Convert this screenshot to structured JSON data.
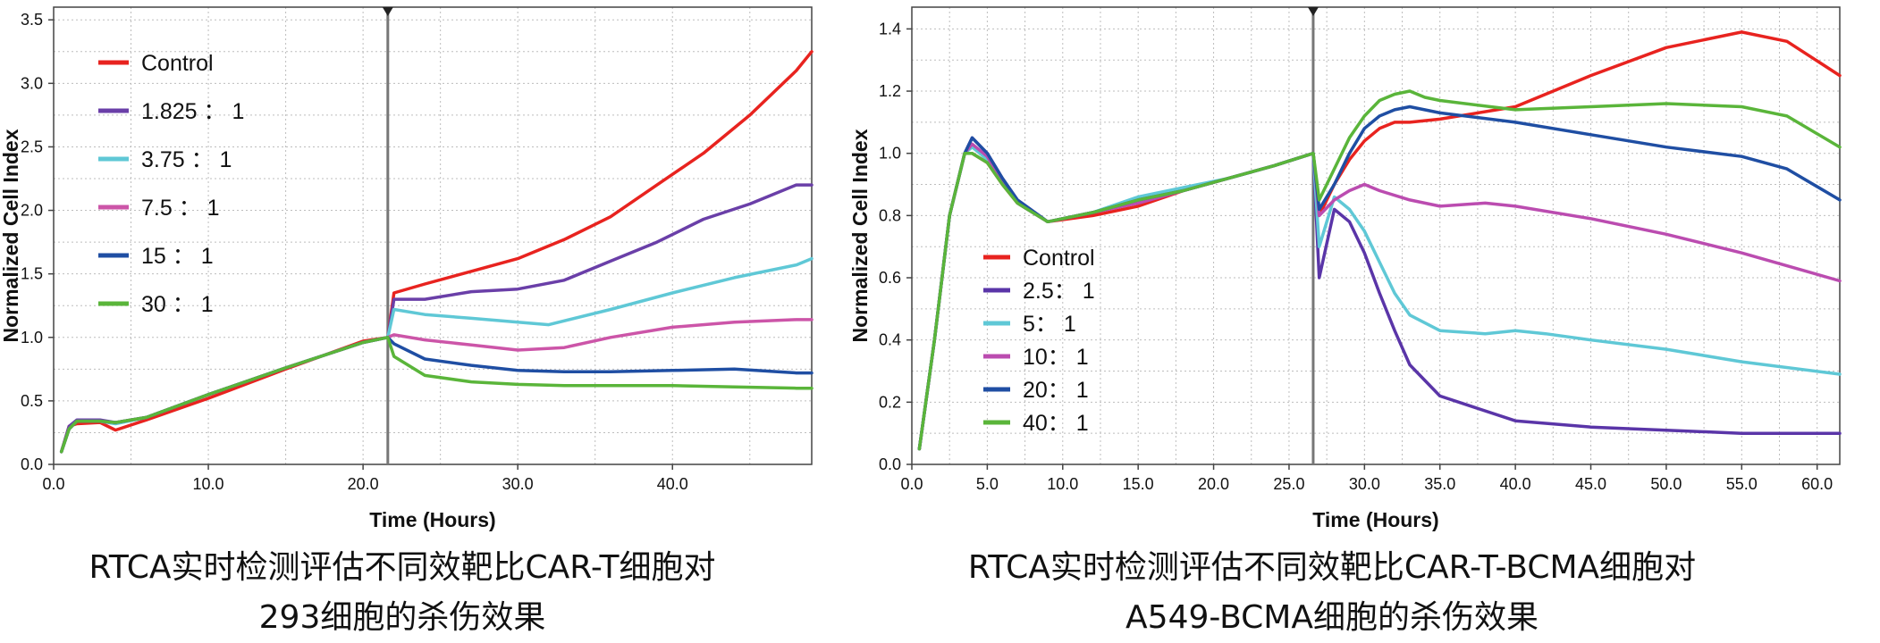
{
  "chart_data": [
    {
      "type": "line",
      "title": "",
      "xlabel": "Time (Hours)",
      "ylabel": "Normalized Cell Index",
      "xlim": [
        0,
        49
      ],
      "ylim": [
        0,
        3.6
      ],
      "xticks": [
        0,
        10,
        20,
        30,
        40
      ],
      "xtick_labels": [
        "0.0",
        "10.0",
        "20.0",
        "30.0",
        "40.0"
      ],
      "yticks": [
        0,
        0.5,
        1.0,
        1.5,
        2.0,
        2.5,
        3.0,
        3.5
      ],
      "ytick_labels": [
        "0.0",
        "0.5",
        "1.0",
        "1.5",
        "2.0",
        "2.5",
        "3.0",
        "3.5"
      ],
      "grid": true,
      "legend_position": "top-left",
      "marker_x": 21.6,
      "caption": [
        "RTCA实时检测评估不同效靶比CAR-T细胞对",
        "293细胞的杀伤效果"
      ],
      "series": [
        {
          "name": "Control",
          "color": "#e8231f",
          "x": [
            0.5,
            1,
            1.5,
            3,
            4,
            6,
            10,
            15,
            20,
            21.6,
            22,
            24,
            27,
            30,
            33,
            36,
            39,
            42,
            45,
            48,
            49
          ],
          "values": [
            0.1,
            0.3,
            0.32,
            0.33,
            0.27,
            0.35,
            0.52,
            0.75,
            0.97,
            1.0,
            1.35,
            1.42,
            1.52,
            1.62,
            1.77,
            1.95,
            2.2,
            2.45,
            2.75,
            3.1,
            3.25
          ]
        },
        {
          "name": "1.825 ： 1",
          "color": "#6a3fa8",
          "x": [
            0.5,
            1,
            1.5,
            3,
            4,
            6,
            10,
            15,
            20,
            21.6,
            22,
            24,
            27,
            30,
            33,
            36,
            39,
            42,
            45,
            48,
            49
          ],
          "values": [
            0.1,
            0.3,
            0.35,
            0.35,
            0.33,
            0.37,
            0.55,
            0.76,
            0.96,
            1.0,
            1.3,
            1.3,
            1.36,
            1.38,
            1.45,
            1.6,
            1.75,
            1.93,
            2.05,
            2.2,
            2.2
          ]
        },
        {
          "name": "3.75 ： 1",
          "color": "#5fc8d6",
          "x": [
            0.5,
            1,
            1.5,
            3,
            4,
            6,
            10,
            15,
            20,
            21.6,
            22,
            24,
            27,
            30,
            32,
            36,
            40,
            44,
            48,
            49
          ],
          "values": [
            0.1,
            0.28,
            0.34,
            0.34,
            0.32,
            0.37,
            0.55,
            0.76,
            0.96,
            1.0,
            1.22,
            1.18,
            1.15,
            1.12,
            1.1,
            1.22,
            1.35,
            1.47,
            1.57,
            1.62
          ]
        },
        {
          "name": "7.5 ： 1",
          "color": "#cc55a8",
          "x": [
            0.5,
            1,
            1.5,
            3,
            4,
            6,
            10,
            15,
            20,
            21.6,
            22,
            24,
            27,
            30,
            33,
            36,
            40,
            44,
            48,
            49
          ],
          "values": [
            0.1,
            0.28,
            0.34,
            0.34,
            0.33,
            0.37,
            0.55,
            0.76,
            0.96,
            1.0,
            1.02,
            0.98,
            0.94,
            0.9,
            0.92,
            1.0,
            1.08,
            1.12,
            1.14,
            1.14
          ]
        },
        {
          "name": "15 ： 1",
          "color": "#1f4ea3",
          "x": [
            0.5,
            1,
            1.5,
            3,
            4,
            6,
            10,
            15,
            20,
            21.6,
            22,
            24,
            27,
            30,
            33,
            36,
            40,
            44,
            48,
            49
          ],
          "values": [
            0.1,
            0.28,
            0.34,
            0.34,
            0.33,
            0.37,
            0.55,
            0.76,
            0.96,
            1.0,
            0.95,
            0.83,
            0.78,
            0.74,
            0.73,
            0.73,
            0.74,
            0.75,
            0.72,
            0.72
          ]
        },
        {
          "name": "30 ： 1",
          "color": "#5ab53a",
          "x": [
            0.5,
            1,
            1.5,
            3,
            4,
            6,
            10,
            15,
            20,
            21.6,
            22,
            24,
            27,
            30,
            33,
            36,
            40,
            44,
            48,
            49
          ],
          "values": [
            0.1,
            0.28,
            0.34,
            0.34,
            0.33,
            0.37,
            0.55,
            0.76,
            0.96,
            1.0,
            0.85,
            0.7,
            0.65,
            0.63,
            0.62,
            0.62,
            0.62,
            0.61,
            0.6,
            0.6
          ]
        }
      ]
    },
    {
      "type": "line",
      "title": "",
      "xlabel": "Time (Hours)",
      "ylabel": "Normalized Cell Index",
      "xlim": [
        0,
        61.5
      ],
      "ylim": [
        0,
        1.47
      ],
      "xticks": [
        0,
        5,
        10,
        15,
        20,
        25,
        30,
        35,
        40,
        45,
        50,
        55,
        60
      ],
      "xtick_labels": [
        "0.0",
        "5.0",
        "10.0",
        "15.0",
        "20.0",
        "25.0",
        "30.0",
        "35.0",
        "40.0",
        "45.0",
        "50.0",
        "55.0",
        "60.0"
      ],
      "yticks": [
        0,
        0.2,
        0.4,
        0.6,
        0.8,
        1.0,
        1.2,
        1.4
      ],
      "ytick_labels": [
        "0.0",
        "0.2",
        "0.4",
        "0.6",
        "0.8",
        "1.0",
        "1.2",
        "1.4"
      ],
      "grid": true,
      "legend_position": "center-left",
      "marker_x": 26.6,
      "caption": [
        "RTCA实时检测评估不同效靶比CAR-T-BCMA细胞对",
        "A549-BCMA细胞的杀伤效果"
      ],
      "series": [
        {
          "name": "Control",
          "color": "#e8231f",
          "x": [
            0.5,
            1.5,
            2.5,
            3.5,
            4,
            5,
            6,
            7,
            9,
            12,
            15,
            18,
            21,
            24,
            26.6,
            27,
            28,
            29,
            30,
            31,
            32,
            33,
            35,
            40,
            45,
            50,
            55,
            58,
            61.5
          ],
          "values": [
            0.05,
            0.4,
            0.8,
            1.0,
            1.0,
            0.97,
            0.9,
            0.84,
            0.78,
            0.8,
            0.83,
            0.88,
            0.92,
            0.96,
            1.0,
            0.8,
            0.9,
            0.98,
            1.04,
            1.08,
            1.1,
            1.1,
            1.11,
            1.15,
            1.25,
            1.34,
            1.39,
            1.36,
            1.25
          ]
        },
        {
          "name": "2.5： 1",
          "color": "#5a35a8",
          "x": [
            0.5,
            1.5,
            2.5,
            3.5,
            4,
            5,
            6,
            7,
            9,
            12,
            15,
            18,
            21,
            24,
            26.6,
            27,
            28,
            29,
            30,
            31,
            32,
            33,
            35,
            40,
            45,
            50,
            55,
            61.5
          ],
          "values": [
            0.05,
            0.4,
            0.8,
            1.0,
            1.05,
            1.0,
            0.92,
            0.85,
            0.78,
            0.81,
            0.85,
            0.88,
            0.92,
            0.96,
            1.0,
            0.6,
            0.82,
            0.78,
            0.68,
            0.55,
            0.43,
            0.32,
            0.22,
            0.14,
            0.12,
            0.11,
            0.1,
            0.1
          ]
        },
        {
          "name": "5： 1",
          "color": "#5fc8d6",
          "x": [
            0.5,
            1.5,
            2.5,
            3.5,
            4,
            5,
            6,
            7,
            9,
            12,
            15,
            18,
            21,
            24,
            26.6,
            27,
            28,
            29,
            30,
            31,
            32,
            33,
            35,
            38,
            40,
            42,
            45,
            50,
            55,
            61.5
          ],
          "values": [
            0.05,
            0.4,
            0.8,
            1.0,
            1.02,
            0.98,
            0.91,
            0.84,
            0.78,
            0.81,
            0.86,
            0.89,
            0.92,
            0.96,
            1.0,
            0.7,
            0.86,
            0.82,
            0.75,
            0.65,
            0.55,
            0.48,
            0.43,
            0.42,
            0.43,
            0.42,
            0.4,
            0.37,
            0.33,
            0.29
          ]
        },
        {
          "name": "10： 1",
          "color": "#bb4cb0",
          "x": [
            0.5,
            1.5,
            2.5,
            3.5,
            4,
            5,
            6,
            7,
            9,
            12,
            15,
            18,
            21,
            24,
            26.6,
            27,
            28,
            29,
            30,
            31,
            33,
            35,
            38,
            40,
            45,
            50,
            55,
            61.5
          ],
          "values": [
            0.05,
            0.4,
            0.8,
            1.0,
            1.03,
            0.99,
            0.91,
            0.84,
            0.78,
            0.81,
            0.84,
            0.88,
            0.92,
            0.96,
            1.0,
            0.8,
            0.85,
            0.88,
            0.9,
            0.88,
            0.85,
            0.83,
            0.84,
            0.83,
            0.79,
            0.74,
            0.68,
            0.59
          ]
        },
        {
          "name": "20： 1",
          "color": "#1f4ea3",
          "x": [
            0.5,
            1.5,
            2.5,
            3.5,
            4,
            5,
            6,
            7,
            9,
            12,
            15,
            18,
            21,
            24,
            26.6,
            27,
            28,
            29,
            30,
            31,
            32,
            33,
            35,
            40,
            45,
            50,
            55,
            58,
            61.5
          ],
          "values": [
            0.05,
            0.4,
            0.8,
            1.0,
            1.05,
            1.0,
            0.92,
            0.85,
            0.78,
            0.81,
            0.85,
            0.88,
            0.92,
            0.96,
            1.0,
            0.82,
            0.9,
            1.0,
            1.08,
            1.12,
            1.14,
            1.15,
            1.13,
            1.1,
            1.06,
            1.02,
            0.99,
            0.95,
            0.85
          ]
        },
        {
          "name": "40： 1",
          "color": "#5ab53a",
          "x": [
            0.5,
            1.5,
            2.5,
            3.5,
            4,
            5,
            6,
            7,
            9,
            12,
            15,
            18,
            21,
            24,
            26.6,
            27,
            28,
            29,
            30,
            31,
            32,
            33,
            34,
            35,
            40,
            45,
            50,
            55,
            58,
            61.5
          ],
          "values": [
            0.05,
            0.4,
            0.8,
            1.0,
            1.0,
            0.97,
            0.9,
            0.84,
            0.78,
            0.81,
            0.85,
            0.88,
            0.92,
            0.96,
            1.0,
            0.85,
            0.95,
            1.05,
            1.12,
            1.17,
            1.19,
            1.2,
            1.18,
            1.17,
            1.14,
            1.15,
            1.16,
            1.15,
            1.12,
            1.02
          ]
        }
      ]
    }
  ]
}
